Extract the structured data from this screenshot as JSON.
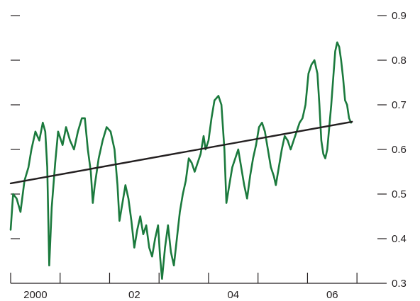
{
  "chart_data": {
    "type": "line",
    "title": "",
    "xlabel": "",
    "ylabel": "",
    "xlim": [
      1999.5,
      2007.1
    ],
    "ylim": [
      0.3,
      0.9
    ],
    "y_ticks": [
      0.3,
      0.4,
      0.5,
      0.6,
      0.7,
      0.8,
      0.9
    ],
    "y_tick_labels": [
      "0.3",
      "0.4",
      "0.5",
      "0.6",
      "0.7",
      "0.8",
      "0.9"
    ],
    "left_tick_marks": true,
    "x_ticks": [
      1999.5,
      2000.5,
      2001.5,
      2002.5,
      2003.5,
      2004.5,
      2005.5,
      2006.5
    ],
    "x_labels": [
      {
        "x": 2000,
        "label": "2000"
      },
      {
        "x": 2002,
        "label": "02"
      },
      {
        "x": 2004,
        "label": "04"
      },
      {
        "x": 2006,
        "label": "06"
      }
    ],
    "grid": false,
    "legend": "none",
    "series": [
      {
        "kind": "line",
        "color": "#1b7a3d",
        "points": [
          [
            1999.5,
            0.42
          ],
          [
            1999.55,
            0.5
          ],
          [
            1999.62,
            0.49
          ],
          [
            1999.7,
            0.46
          ],
          [
            1999.78,
            0.53
          ],
          [
            1999.86,
            0.56
          ],
          [
            1999.92,
            0.6
          ],
          [
            2000.0,
            0.64
          ],
          [
            2000.08,
            0.62
          ],
          [
            2000.15,
            0.66
          ],
          [
            2000.2,
            0.64
          ],
          [
            2000.24,
            0.56
          ],
          [
            2000.28,
            0.34
          ],
          [
            2000.33,
            0.47
          ],
          [
            2000.4,
            0.57
          ],
          [
            2000.46,
            0.64
          ],
          [
            2000.55,
            0.61
          ],
          [
            2000.62,
            0.65
          ],
          [
            2000.7,
            0.62
          ],
          [
            2000.78,
            0.6
          ],
          [
            2000.86,
            0.64
          ],
          [
            2000.94,
            0.67
          ],
          [
            2001.0,
            0.67
          ],
          [
            2001.06,
            0.6
          ],
          [
            2001.12,
            0.55
          ],
          [
            2001.16,
            0.48
          ],
          [
            2001.2,
            0.52
          ],
          [
            2001.28,
            0.58
          ],
          [
            2001.36,
            0.62
          ],
          [
            2001.44,
            0.65
          ],
          [
            2001.52,
            0.64
          ],
          [
            2001.6,
            0.6
          ],
          [
            2001.66,
            0.52
          ],
          [
            2001.7,
            0.44
          ],
          [
            2001.76,
            0.48
          ],
          [
            2001.82,
            0.52
          ],
          [
            2001.88,
            0.49
          ],
          [
            2001.94,
            0.44
          ],
          [
            2002.0,
            0.38
          ],
          [
            2002.06,
            0.42
          ],
          [
            2002.12,
            0.45
          ],
          [
            2002.18,
            0.41
          ],
          [
            2002.24,
            0.43
          ],
          [
            2002.3,
            0.38
          ],
          [
            2002.36,
            0.36
          ],
          [
            2002.42,
            0.4
          ],
          [
            2002.48,
            0.43
          ],
          [
            2002.52,
            0.36
          ],
          [
            2002.56,
            0.31
          ],
          [
            2002.62,
            0.38
          ],
          [
            2002.68,
            0.43
          ],
          [
            2002.74,
            0.37
          ],
          [
            2002.8,
            0.34
          ],
          [
            2002.86,
            0.4
          ],
          [
            2002.92,
            0.46
          ],
          [
            2002.98,
            0.5
          ],
          [
            2003.04,
            0.53
          ],
          [
            2003.1,
            0.58
          ],
          [
            2003.16,
            0.57
          ],
          [
            2003.22,
            0.55
          ],
          [
            2003.28,
            0.57
          ],
          [
            2003.34,
            0.59
          ],
          [
            2003.4,
            0.63
          ],
          [
            2003.44,
            0.6
          ],
          [
            2003.5,
            0.62
          ],
          [
            2003.56,
            0.67
          ],
          [
            2003.62,
            0.71
          ],
          [
            2003.7,
            0.72
          ],
          [
            2003.76,
            0.7
          ],
          [
            2003.82,
            0.6
          ],
          [
            2003.86,
            0.48
          ],
          [
            2003.92,
            0.52
          ],
          [
            2003.98,
            0.56
          ],
          [
            2004.04,
            0.58
          ],
          [
            2004.1,
            0.6
          ],
          [
            2004.16,
            0.56
          ],
          [
            2004.22,
            0.52
          ],
          [
            2004.28,
            0.49
          ],
          [
            2004.34,
            0.54
          ],
          [
            2004.4,
            0.58
          ],
          [
            2004.46,
            0.61
          ],
          [
            2004.52,
            0.65
          ],
          [
            2004.58,
            0.66
          ],
          [
            2004.64,
            0.64
          ],
          [
            2004.7,
            0.6
          ],
          [
            2004.76,
            0.56
          ],
          [
            2004.82,
            0.54
          ],
          [
            2004.86,
            0.52
          ],
          [
            2004.92,
            0.56
          ],
          [
            2004.98,
            0.6
          ],
          [
            2005.04,
            0.63
          ],
          [
            2005.1,
            0.62
          ],
          [
            2005.16,
            0.6
          ],
          [
            2005.22,
            0.62
          ],
          [
            2005.28,
            0.64
          ],
          [
            2005.34,
            0.66
          ],
          [
            2005.4,
            0.67
          ],
          [
            2005.46,
            0.7
          ],
          [
            2005.52,
            0.77
          ],
          [
            2005.58,
            0.79
          ],
          [
            2005.64,
            0.8
          ],
          [
            2005.7,
            0.77
          ],
          [
            2005.74,
            0.7
          ],
          [
            2005.78,
            0.62
          ],
          [
            2005.82,
            0.59
          ],
          [
            2005.86,
            0.58
          ],
          [
            2005.9,
            0.6
          ],
          [
            2005.94,
            0.65
          ],
          [
            2005.98,
            0.7
          ],
          [
            2006.02,
            0.76
          ],
          [
            2006.06,
            0.82
          ],
          [
            2006.1,
            0.84
          ],
          [
            2006.14,
            0.83
          ],
          [
            2006.18,
            0.8
          ],
          [
            2006.22,
            0.76
          ],
          [
            2006.26,
            0.71
          ],
          [
            2006.3,
            0.7
          ],
          [
            2006.34,
            0.67
          ],
          [
            2006.38,
            0.66
          ]
        ]
      },
      {
        "kind": "trend",
        "color": "#231f20",
        "points": [
          [
            1999.5,
            0.524
          ],
          [
            2006.4,
            0.662
          ]
        ]
      }
    ]
  }
}
